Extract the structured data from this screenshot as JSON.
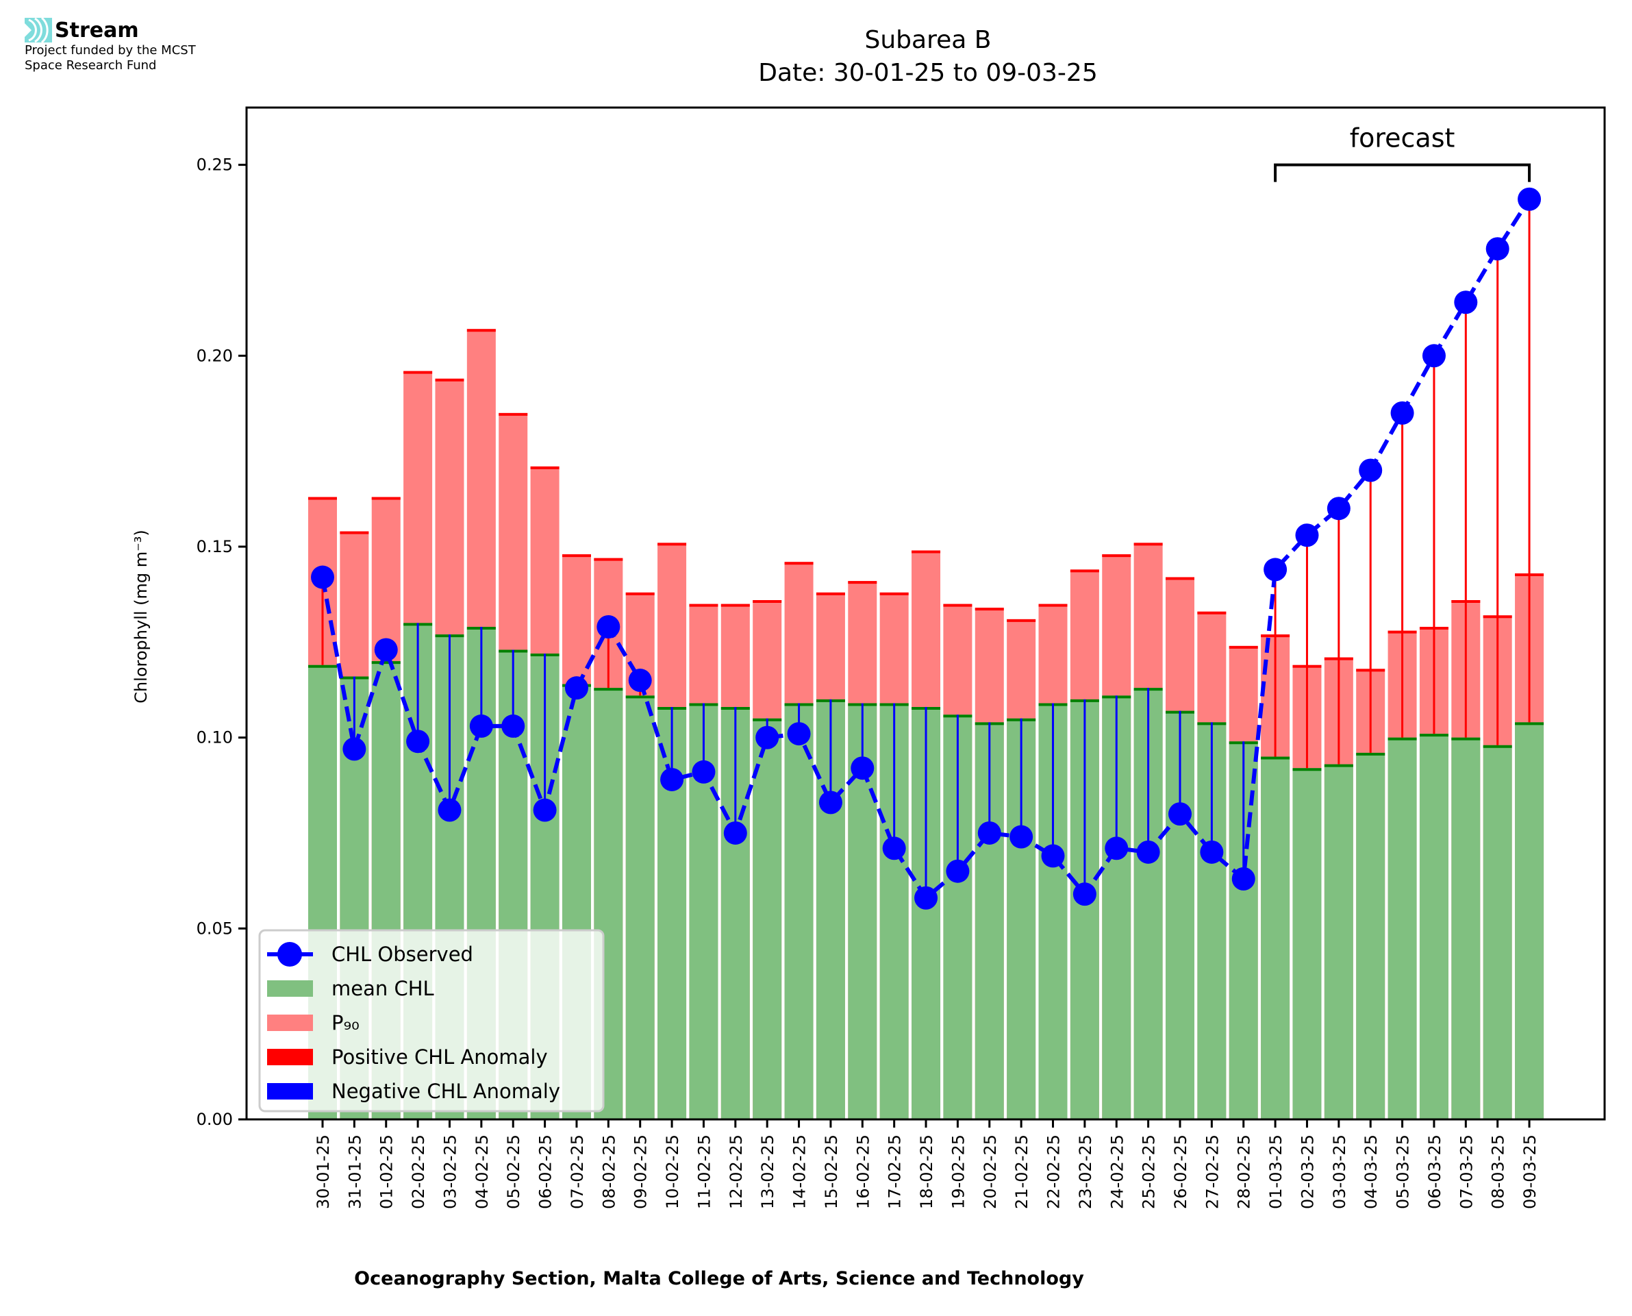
{
  "logo": {
    "name": "Stream",
    "funded_line1": "Project funded by the MCST",
    "funded_line2": "Space Research Fund",
    "icon": "stream-waves-icon",
    "icon_color": "#7fdcdc"
  },
  "chart_data": {
    "type": "bar",
    "title": "Subarea B",
    "subtitle": "Date: 30-01-25 to 09-03-25",
    "xlabel": "Oceanography Section, Malta College of Arts, Science and Technology",
    "ylabel": "Chlorophyll (mg m⁻³)",
    "ylim": [
      0,
      0.265
    ],
    "yticks": [
      0.0,
      0.05,
      0.1,
      0.15,
      0.2,
      0.25
    ],
    "ytick_labels": [
      "0.00",
      "0.05",
      "0.10",
      "0.15",
      "0.20",
      "0.25"
    ],
    "grid": false,
    "legend_position": "lower-left",
    "categories": [
      "30-01-25",
      "31-01-25",
      "01-02-25",
      "02-02-25",
      "03-02-25",
      "04-02-25",
      "05-02-25",
      "06-02-25",
      "07-02-25",
      "08-02-25",
      "09-02-25",
      "10-02-25",
      "11-02-25",
      "12-02-25",
      "13-02-25",
      "14-02-25",
      "15-02-25",
      "16-02-25",
      "17-02-25",
      "18-02-25",
      "19-02-25",
      "20-02-25",
      "21-02-25",
      "22-02-25",
      "23-02-25",
      "24-02-25",
      "25-02-25",
      "26-02-25",
      "27-02-25",
      "28-02-25",
      "01-03-25",
      "02-03-25",
      "03-03-25",
      "04-03-25",
      "05-03-25",
      "06-03-25",
      "07-03-25",
      "08-03-25",
      "09-03-25"
    ],
    "series": [
      {
        "name": "mean CHL",
        "kind": "bar",
        "color": "#80c080",
        "edge_color": "#008000",
        "values": [
          0.119,
          0.116,
          0.12,
          0.13,
          0.127,
          0.129,
          0.123,
          0.122,
          0.114,
          0.113,
          0.111,
          0.108,
          0.109,
          0.108,
          0.105,
          0.109,
          0.11,
          0.109,
          0.109,
          0.108,
          0.106,
          0.104,
          0.105,
          0.109,
          0.11,
          0.111,
          0.113,
          0.107,
          0.104,
          0.099,
          0.095,
          0.092,
          0.093,
          0.096,
          0.1,
          0.101,
          0.1,
          0.098,
          0.104
        ]
      },
      {
        "name": "P₉₀",
        "kind": "bar",
        "color": "#ff8080",
        "edge_color": "#ff0000",
        "values": [
          0.163,
          0.154,
          0.163,
          0.196,
          0.194,
          0.207,
          0.185,
          0.171,
          0.148,
          0.147,
          0.138,
          0.151,
          0.135,
          0.135,
          0.136,
          0.146,
          0.138,
          0.141,
          0.138,
          0.149,
          0.135,
          0.134,
          0.131,
          0.135,
          0.144,
          0.148,
          0.151,
          0.142,
          0.133,
          0.124,
          0.127,
          0.119,
          0.121,
          0.118,
          0.128,
          0.129,
          0.136,
          0.132,
          0.143
        ]
      },
      {
        "name": "CHL Observed",
        "kind": "line",
        "color": "#0000ff",
        "style": "dashed",
        "marker": "circle",
        "values": [
          0.142,
          0.097,
          0.123,
          0.099,
          0.081,
          0.103,
          0.103,
          0.081,
          0.113,
          0.129,
          0.115,
          0.089,
          0.091,
          0.075,
          0.1,
          0.101,
          0.083,
          0.092,
          0.071,
          0.058,
          0.065,
          0.075,
          0.074,
          0.069,
          0.059,
          0.071,
          0.07,
          0.08,
          0.07,
          0.063,
          0.144,
          0.153,
          0.16,
          0.17,
          0.185,
          0.2,
          0.214,
          0.228,
          0.241
        ]
      },
      {
        "name": "Positive CHL Anomaly",
        "kind": "stem",
        "color": "#ff0000"
      },
      {
        "name": "Negative CHL Anomaly",
        "kind": "stem",
        "color": "#0000ff"
      }
    ],
    "annotations": [
      {
        "text": "forecast",
        "type": "bracket",
        "from": "01-03-25",
        "to": "09-03-25"
      }
    ]
  }
}
